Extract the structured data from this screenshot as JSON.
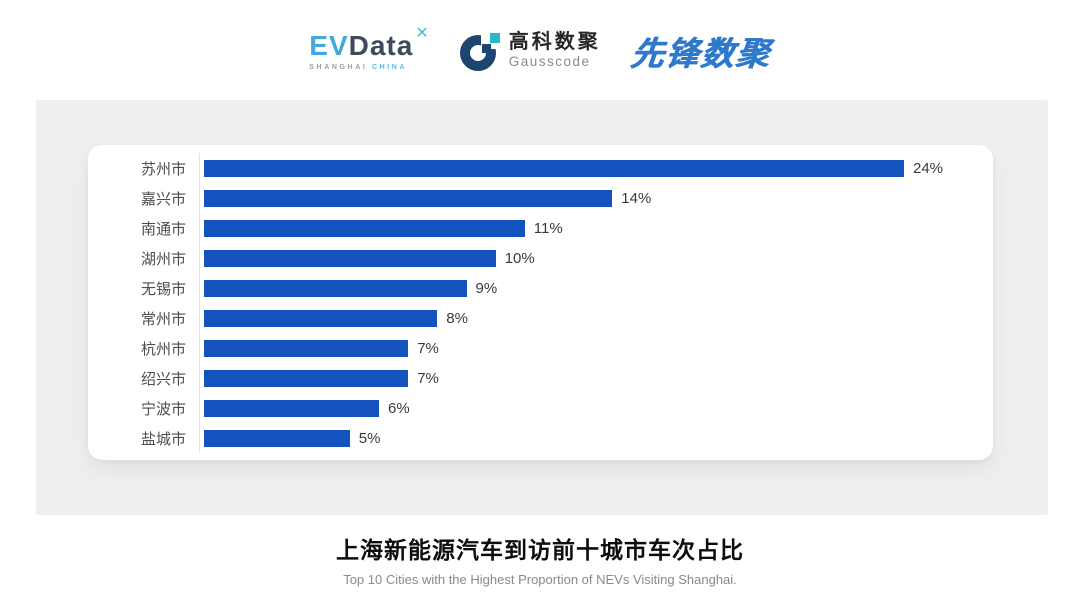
{
  "header": {
    "evdata": {
      "ev": "EV",
      "data": "Data",
      "mark": "✕",
      "subtext_left": "SHANGHAI",
      "subtext_right": "CHINA"
    },
    "gausscode": {
      "name_cn": "高科数聚",
      "name_en": "Gausscode"
    },
    "xianfeng": {
      "text": "先锋数聚"
    }
  },
  "chart_data": {
    "type": "bar",
    "orientation": "horizontal",
    "title": "上海新能源汽车到访前十城市车次占比",
    "subtitle": "Top 10 Cities with the Highest Proportion of  NEVs Visiting Shanghai.",
    "categories": [
      "苏州市",
      "嘉兴市",
      "南通市",
      "湖州市",
      "无锡市",
      "常州市",
      "杭州市",
      "绍兴市",
      "宁波市",
      "盐城市"
    ],
    "values": [
      24,
      14,
      11,
      10,
      9,
      8,
      7,
      7,
      6,
      5
    ],
    "value_labels": [
      "24%",
      "14%",
      "11%",
      "10%",
      "9%",
      "8%",
      "7%",
      "7%",
      "6%",
      "5%"
    ],
    "unit": "%",
    "xlim": [
      0,
      25
    ],
    "sort_order": "descending",
    "grid": false,
    "legend": false,
    "bar_color": "#1452BE",
    "axis_line_color": "#E2E2E2"
  },
  "colors": {
    "panel_gray": "#EFEFEF",
    "bar_blue": "#1452BE",
    "category_label": "#4D4D4D",
    "value_label": "#3A3A3A",
    "evdata_blue": "#42A9DE",
    "evdata_slate": "#3D4A5B",
    "gausscode_navy": "#1E4470",
    "gausscode_cyan": "#29B9CC",
    "xianfeng_blue": "#2E79CB"
  }
}
